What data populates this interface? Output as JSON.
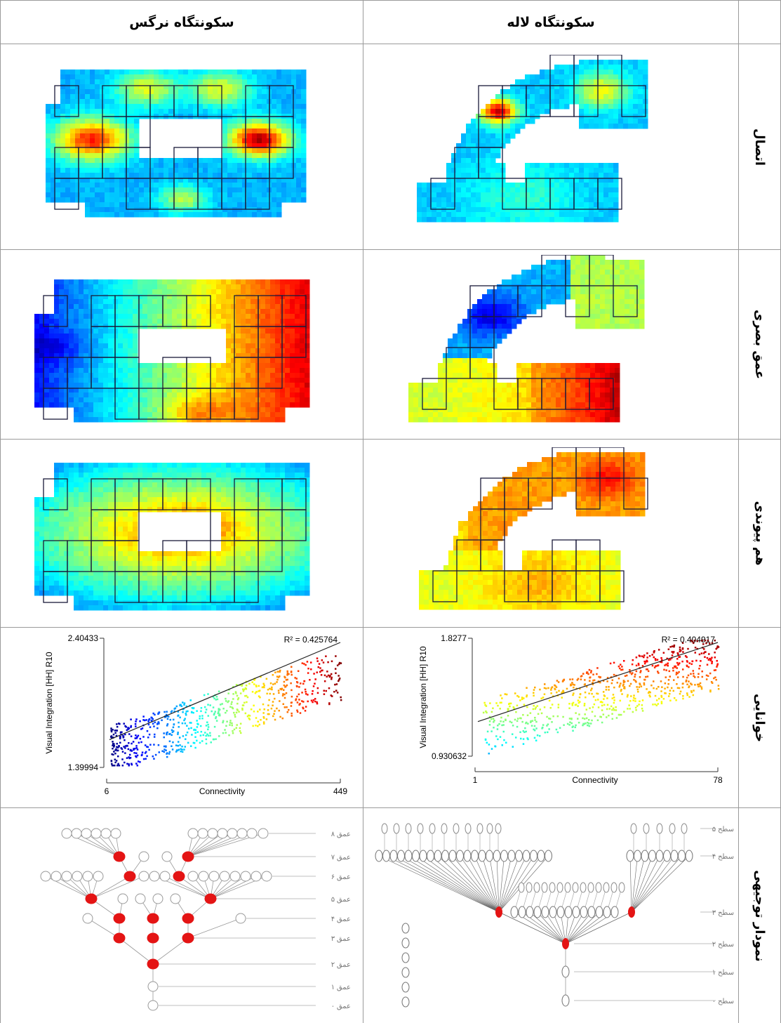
{
  "table": {
    "headers": [
      "سکونتگاه نرگس",
      "سکونتگاه لاله"
    ],
    "row_labels": [
      "اتصال",
      "عمق بصری",
      "هم پیوندی",
      "خوانایی",
      "نمودار توجیهی"
    ]
  },
  "scatter": [
    {
      "y_label": "Visual Integration [HH] R10",
      "x_label": "Connectivity",
      "y_max": "2.40433",
      "y_min": "1.39994",
      "x_min": "6",
      "x_max": "449",
      "r2": "R² = 0.425764"
    },
    {
      "y_label": "Visual Integration [HH] R10",
      "x_label": "Connectivity",
      "y_max": "1.8277",
      "y_min": "0.930632",
      "x_min": "1",
      "x_max": "78",
      "r2": "R² = 0.404917"
    }
  ],
  "graphs": [
    {
      "depth_labels": [
        "عمق ۸",
        "عمق ۷",
        "عمق ۶",
        "عمق ۵",
        "عمق ۴",
        "عمق ۳",
        "عمق ۲",
        "عمق ۱",
        "عمق ۰"
      ]
    },
    {
      "depth_labels": [
        "سطح ۵",
        "سطح ۴",
        "سطح ۳",
        "سطح ۲",
        "سطح ۱",
        "سطح ۰"
      ]
    }
  ]
}
